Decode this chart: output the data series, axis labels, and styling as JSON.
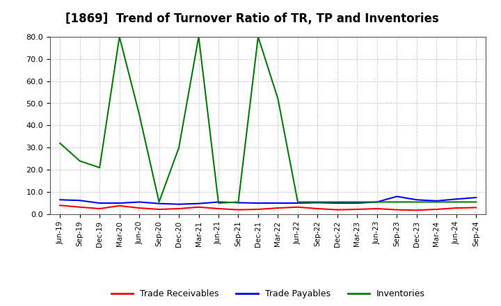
{
  "title": "[1869]  Trend of Turnover Ratio of TR, TP and Inventories",
  "xlabels": [
    "Jun-19",
    "Sep-19",
    "Dec-19",
    "Mar-20",
    "Jun-20",
    "Sep-20",
    "Dec-20",
    "Mar-21",
    "Jun-21",
    "Sep-21",
    "Dec-21",
    "Mar-22",
    "Jun-22",
    "Sep-22",
    "Dec-22",
    "Mar-23",
    "Jun-23",
    "Sep-23",
    "Dec-23",
    "Mar-24",
    "Jun-24",
    "Sep-24"
  ],
  "trade_receivables": [
    4.0,
    3.2,
    2.5,
    3.8,
    2.8,
    2.2,
    2.5,
    3.2,
    2.5,
    2.0,
    2.2,
    2.8,
    3.2,
    2.5,
    2.0,
    2.2,
    2.5,
    2.0,
    1.8,
    2.2,
    2.8,
    3.0
  ],
  "trade_payables": [
    6.5,
    6.2,
    5.0,
    5.0,
    5.5,
    4.8,
    4.5,
    4.8,
    5.5,
    5.2,
    5.0,
    5.0,
    5.0,
    5.2,
    5.0,
    5.0,
    5.5,
    8.0,
    6.5,
    6.0,
    6.8,
    7.5
  ],
  "inventories": [
    32.0,
    24.0,
    21.0,
    80.0,
    45.0,
    5.5,
    30.0,
    80.0,
    5.0,
    5.5,
    80.0,
    52.0,
    5.5,
    5.5,
    5.5,
    5.5,
    5.5,
    5.5,
    5.5,
    5.5,
    5.5,
    5.5
  ],
  "ylim": [
    0.0,
    80.0
  ],
  "yticks": [
    0.0,
    10.0,
    20.0,
    30.0,
    40.0,
    50.0,
    60.0,
    70.0,
    80.0
  ],
  "color_tr": "#ff0000",
  "color_tp": "#0000ff",
  "color_inv": "#008000",
  "bg_color": "#ffffff",
  "grid_color": "#aaaaaa",
  "title_fontsize": 12,
  "legend_labels": [
    "Trade Receivables",
    "Trade Payables",
    "Inventories"
  ]
}
